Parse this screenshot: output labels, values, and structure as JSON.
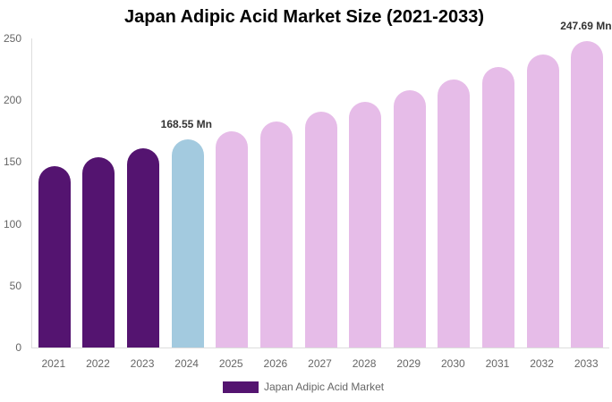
{
  "chart_data": {
    "type": "bar",
    "title": "Japan Adipic Acid Market Size (2021-2033)",
    "xlabel": "",
    "ylabel": "",
    "ylim": [
      0,
      250
    ],
    "yticks": [
      0,
      50,
      100,
      150,
      200,
      250
    ],
    "grid": false,
    "legend_position": "bottom",
    "categories": [
      "2021",
      "2022",
      "2023",
      "2024",
      "2025",
      "2026",
      "2027",
      "2028",
      "2029",
      "2030",
      "2031",
      "2032",
      "2033"
    ],
    "series": [
      {
        "name": "Japan Adipic Acid Market",
        "values": [
          147,
          154,
          161,
          168.55,
          175,
          183,
          191,
          199,
          208,
          217,
          227,
          237,
          247.69
        ]
      }
    ],
    "bar_colors": [
      "#541470",
      "#541470",
      "#541470",
      "#a3cadf",
      "#e6bce8",
      "#e6bce8",
      "#e6bce8",
      "#e6bce8",
      "#e6bce8",
      "#e6bce8",
      "#e6bce8",
      "#e6bce8",
      "#e6bce8"
    ],
    "annotations": [
      {
        "category": "2024",
        "text": "168.55 Mn"
      },
      {
        "category": "2033",
        "text": "247.69 Mn"
      }
    ]
  },
  "labels": {
    "title": "Japan Adipic Acid Market Size (2021-2033)",
    "legend": "Japan Adipic Acid Market",
    "annotation_2024": "168.55 Mn",
    "annotation_2033": "247.69 Mn"
  }
}
